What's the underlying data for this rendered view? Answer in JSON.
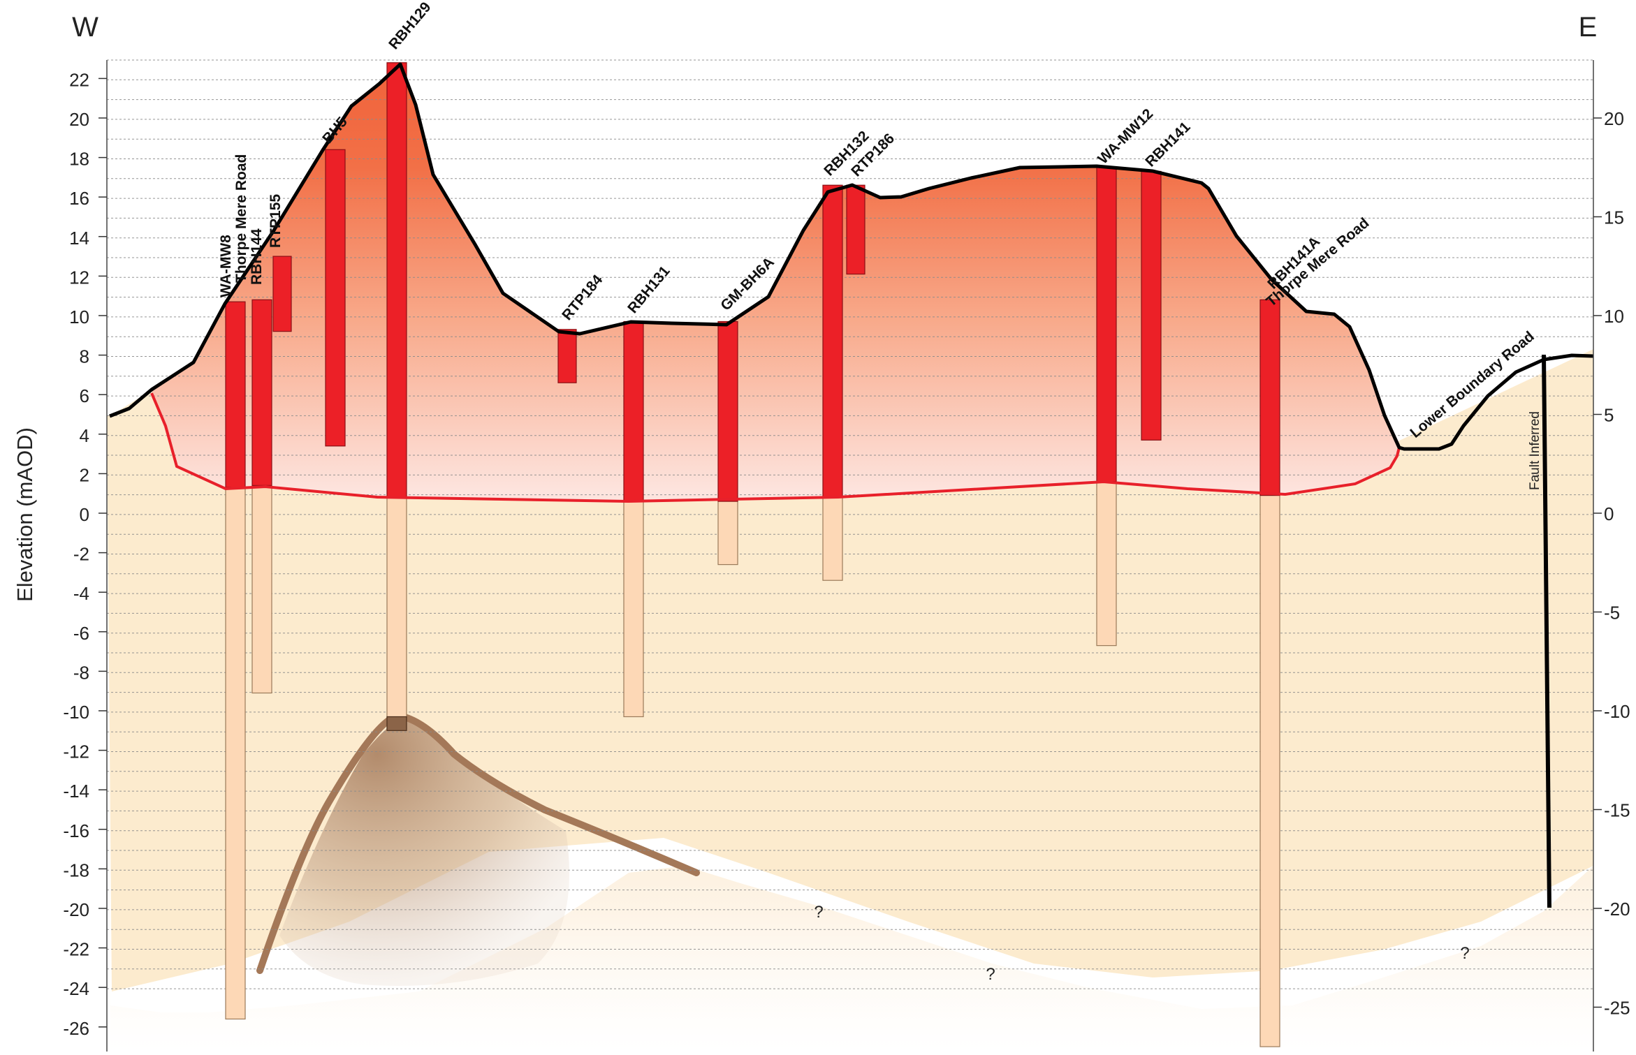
{
  "chart_data": {
    "type": "diagram",
    "direction_left": "W",
    "direction_right": "E",
    "ylabel": "Elevation (mAOD)",
    "left_axis": {
      "ticks": [
        22,
        20,
        18,
        16,
        14,
        12,
        10,
        8,
        6,
        4,
        2,
        0,
        -2,
        -4,
        -6,
        -8,
        -10,
        -12,
        -14,
        -16,
        -18,
        -20,
        -22,
        -24,
        -26
      ]
    },
    "right_axis": {
      "ticks": [
        20,
        15,
        10,
        5,
        0,
        -5,
        -10,
        -15,
        -20,
        -25
      ]
    },
    "boreholes": [
      {
        "name": "WA-MW8",
        "top": 10.7,
        "red_bottom": 1.3,
        "bottom": -25.6
      },
      {
        "name": "RBH144",
        "top": 10.8,
        "red_bottom": 1.4,
        "bottom": -9.1
      },
      {
        "name": "RTP155",
        "top": 13.0,
        "red_bottom": 9.2,
        "bottom": 9.2
      },
      {
        "name": "BH5",
        "top": 18.4,
        "red_bottom": 3.4,
        "bottom": 3.4
      },
      {
        "name": "RBH129",
        "top": 22.8,
        "red_bottom": 0.8,
        "bottom": -10.9
      },
      {
        "name": "RTP184",
        "top": 9.3,
        "red_bottom": 6.6,
        "bottom": 6.6
      },
      {
        "name": "RBH131",
        "top": 9.7,
        "red_bottom": 0.6,
        "bottom": -10.3
      },
      {
        "name": "GM-BH6A",
        "top": 9.7,
        "red_bottom": 0.6,
        "bottom": -2.6
      },
      {
        "name": "RBH132",
        "top": 16.6,
        "red_bottom": 0.8,
        "bottom": -3.4
      },
      {
        "name": "RTP186",
        "top": 16.6,
        "red_bottom": 12.1,
        "bottom": 12.1
      },
      {
        "name": "WA-MW12",
        "top": 17.5,
        "red_bottom": 1.6,
        "bottom": -6.7
      },
      {
        "name": "RBH141",
        "top": 17.3,
        "red_bottom": 3.7,
        "bottom": 3.7
      },
      {
        "name": "RBH141A",
        "top": 10.8,
        "red_bottom": 0.9,
        "bottom": -27.0
      }
    ],
    "road_labels": [
      "Thorpe Mere Road",
      "Thorpe Mere Road",
      "Lower Boundary Road"
    ],
    "fault_label": "Fault Inferred",
    "uncertain_marks": [
      "?",
      "?",
      "?"
    ],
    "colors": {
      "made_ground_top": "#f0623a",
      "made_ground_bottom": "#fde4de",
      "natural": "#f9dba6",
      "borehole_made_ground": "#ec2027",
      "borehole_natural": "#fdd8b6",
      "buried_layer": "#a47858",
      "ground_surface": "#000000",
      "base_line": "#e8202a"
    }
  }
}
